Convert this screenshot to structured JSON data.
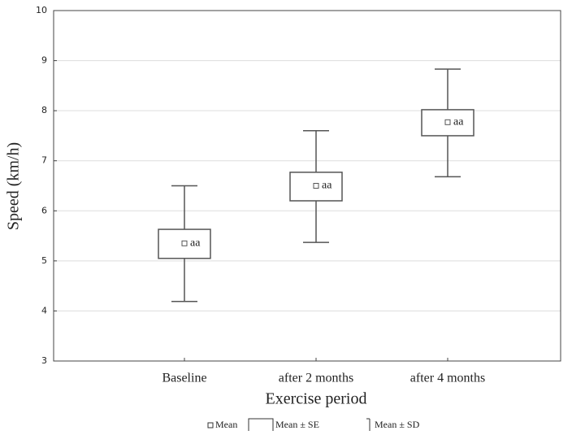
{
  "chart_data": {
    "type": "box",
    "x_label": "Exercise period",
    "y_label": "Speed (km/h)",
    "categories": [
      "Baseline",
      "after 2 months",
      "after 4 months"
    ],
    "mean": [
      5.35,
      6.5,
      7.77
    ],
    "se_low": [
      5.05,
      6.2,
      7.5
    ],
    "se_high": [
      5.63,
      6.77,
      8.02
    ],
    "sd_low": [
      4.19,
      5.37,
      6.68
    ],
    "sd_high": [
      6.5,
      7.6,
      8.83
    ],
    "annotations": [
      "aa",
      "aa",
      "aa"
    ],
    "ylim": [
      3,
      10
    ],
    "yticks": [
      3,
      4,
      5,
      6,
      7,
      8,
      9,
      10
    ],
    "grid": true,
    "legend": [
      "Mean",
      "Mean ± SE",
      "Mean ± SD"
    ],
    "color": "#555555"
  }
}
